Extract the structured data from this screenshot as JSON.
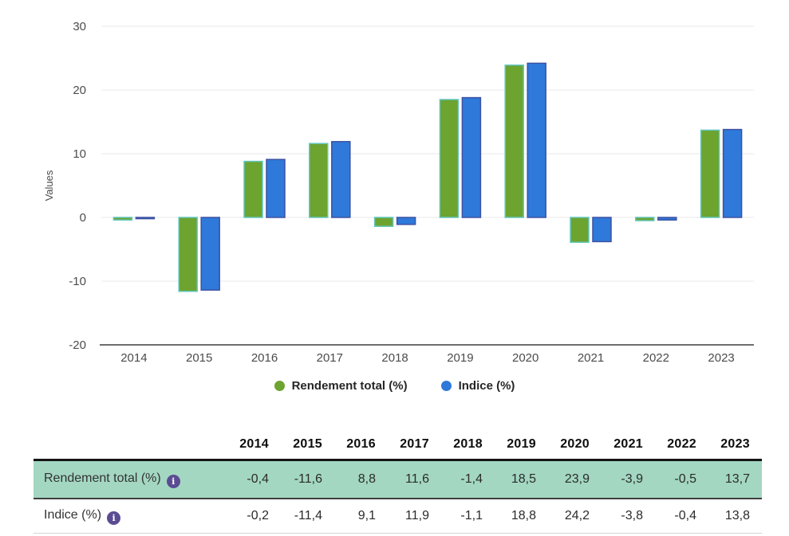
{
  "chart_data": {
    "type": "bar",
    "title": "",
    "xlabel": "",
    "ylabel": "Values",
    "ylim": [
      -20,
      30
    ],
    "y_ticks": [
      30,
      20,
      10,
      0,
      -10,
      -20
    ],
    "grid": true,
    "legend_position": "bottom",
    "categories": [
      "2014",
      "2015",
      "2016",
      "2017",
      "2018",
      "2019",
      "2020",
      "2021",
      "2022",
      "2023"
    ],
    "series": [
      {
        "name": "Rendement total (%)",
        "color": "#6da32f",
        "border_color": "#62c6bd",
        "values": [
          -0.4,
          -11.6,
          8.8,
          11.6,
          -1.4,
          18.5,
          23.9,
          -3.9,
          -0.5,
          13.7
        ]
      },
      {
        "name": "Indice (%)",
        "color": "#2e79d9",
        "border_color": "#3e52a3",
        "values": [
          -0.2,
          -11.4,
          9.1,
          11.9,
          -1.1,
          18.8,
          24.2,
          -3.8,
          -0.4,
          13.8
        ]
      }
    ]
  },
  "legend": {
    "items": [
      {
        "label": "Rendement total (%)",
        "color": "#6da32f"
      },
      {
        "label": "Indice (%)",
        "color": "#2e79d9"
      }
    ]
  },
  "table": {
    "columns": [
      "2014",
      "2015",
      "2016",
      "2017",
      "2018",
      "2019",
      "2020",
      "2021",
      "2022",
      "2023"
    ],
    "rows": [
      {
        "label": "Rendement total (%)",
        "info_icon": "info-icon",
        "highlighted": true,
        "values": [
          "-0,4",
          "-11,6",
          "8,8",
          "11,6",
          "-1,4",
          "18,5",
          "23,9",
          "-3,9",
          "-0,5",
          "13,7"
        ]
      },
      {
        "label": "Indice (%)",
        "info_icon": "info-icon",
        "highlighted": false,
        "values": [
          "-0,2",
          "-11,4",
          "9,1",
          "11,9",
          "-1,1",
          "18,8",
          "24,2",
          "-3,8",
          "-0,4",
          "13,8"
        ]
      }
    ],
    "highlight_color": "#a3d7c2",
    "info_icon_glyph": "i",
    "info_icon_color": "#5b4b93"
  },
  "style": {
    "gridline_color": "#e8e8e8",
    "axis_color": "#6e6e6e",
    "tick_label_color": "#4c4c4c"
  }
}
